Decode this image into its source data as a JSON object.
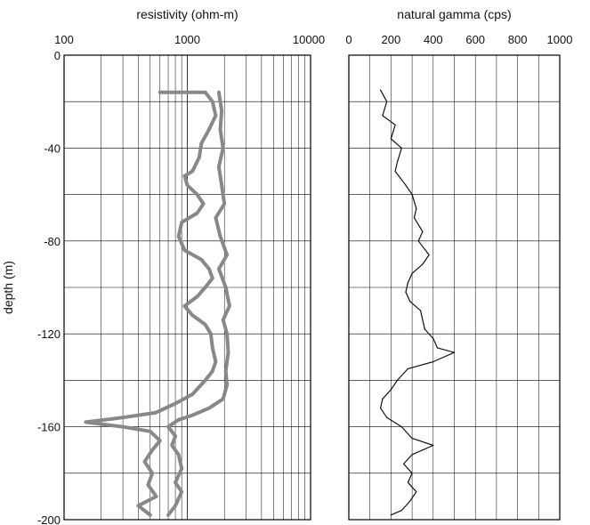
{
  "chart_data": [
    {
      "type": "line",
      "title": "resistivity (ohm-m)",
      "ylabel": "depth (m)",
      "xscale": "log",
      "xlim": [
        100,
        10000
      ],
      "ylim": [
        -200,
        0
      ],
      "x_ticks": [
        "100",
        "1000",
        "10000"
      ],
      "y_ticks": [
        "0",
        "-40",
        "-80",
        "-120",
        "-160",
        "-200"
      ],
      "grid": true,
      "series": [
        {
          "color": "#888888",
          "points": [
            [
              600,
              -16
            ],
            [
              1400,
              -16
            ],
            [
              1600,
              -20
            ],
            [
              1700,
              -26
            ],
            [
              1500,
              -32
            ],
            [
              1300,
              -38
            ],
            [
              1250,
              -44
            ],
            [
              1100,
              -50
            ],
            [
              950,
              -52
            ],
            [
              1000,
              -56
            ],
            [
              1200,
              -60
            ],
            [
              1350,
              -64
            ],
            [
              1200,
              -68
            ],
            [
              900,
              -72
            ],
            [
              850,
              -78
            ],
            [
              950,
              -84
            ],
            [
              1300,
              -88
            ],
            [
              1500,
              -92
            ],
            [
              1600,
              -96
            ],
            [
              1400,
              -100
            ],
            [
              1200,
              -104
            ],
            [
              950,
              -108
            ],
            [
              1100,
              -112
            ],
            [
              1400,
              -116
            ],
            [
              1550,
              -120
            ],
            [
              1600,
              -126
            ],
            [
              1700,
              -132
            ],
            [
              1600,
              -136
            ],
            [
              1400,
              -140
            ],
            [
              1100,
              -146
            ],
            [
              800,
              -150
            ],
            [
              550,
              -154
            ],
            [
              300,
              -156
            ],
            [
              150,
              -158
            ],
            [
              300,
              -160
            ],
            [
              500,
              -162
            ],
            [
              600,
              -166
            ],
            [
              520,
              -170
            ],
            [
              450,
              -175
            ],
            [
              520,
              -180
            ],
            [
              480,
              -185
            ],
            [
              560,
              -190
            ],
            [
              400,
              -194
            ],
            [
              500,
              -198
            ]
          ]
        },
        {
          "color": "#888888",
          "points": [
            [
              1800,
              -16
            ],
            [
              1900,
              -24
            ],
            [
              1850,
              -32
            ],
            [
              1950,
              -40
            ],
            [
              1800,
              -48
            ],
            [
              1900,
              -56
            ],
            [
              2000,
              -64
            ],
            [
              1700,
              -70
            ],
            [
              1850,
              -78
            ],
            [
              2100,
              -86
            ],
            [
              1800,
              -92
            ],
            [
              2050,
              -100
            ],
            [
              2200,
              -108
            ],
            [
              1950,
              -114
            ],
            [
              2100,
              -120
            ],
            [
              2150,
              -128
            ],
            [
              2050,
              -136
            ],
            [
              2100,
              -142
            ],
            [
              1950,
              -148
            ],
            [
              1500,
              -152
            ],
            [
              1100,
              -155
            ],
            [
              850,
              -157
            ],
            [
              700,
              -160
            ],
            [
              800,
              -164
            ],
            [
              750,
              -168
            ],
            [
              850,
              -172
            ],
            [
              900,
              -178
            ],
            [
              800,
              -184
            ],
            [
              900,
              -188
            ],
            [
              800,
              -194
            ],
            [
              700,
              -198
            ]
          ]
        }
      ]
    },
    {
      "type": "line",
      "title": "natural gamma (cps)",
      "xlim": [
        0,
        1000
      ],
      "ylim": [
        -200,
        0
      ],
      "x_ticks": [
        "0",
        "200",
        "400",
        "600",
        "800",
        "1000"
      ],
      "grid": true,
      "series": [
        {
          "color": "#111111",
          "points": [
            [
              150,
              -15
            ],
            [
              180,
              -20
            ],
            [
              160,
              -26
            ],
            [
              220,
              -30
            ],
            [
              200,
              -36
            ],
            [
              250,
              -40
            ],
            [
              230,
              -46
            ],
            [
              220,
              -50
            ],
            [
              270,
              -56
            ],
            [
              300,
              -60
            ],
            [
              320,
              -66
            ],
            [
              310,
              -70
            ],
            [
              350,
              -76
            ],
            [
              330,
              -80
            ],
            [
              380,
              -86
            ],
            [
              350,
              -90
            ],
            [
              300,
              -94
            ],
            [
              280,
              -98
            ],
            [
              270,
              -102
            ],
            [
              290,
              -106
            ],
            [
              340,
              -110
            ],
            [
              350,
              -114
            ],
            [
              360,
              -118
            ],
            [
              400,
              -122
            ],
            [
              420,
              -126
            ],
            [
              500,
              -128
            ],
            [
              400,
              -132
            ],
            [
              280,
              -135
            ],
            [
              230,
              -140
            ],
            [
              200,
              -144
            ],
            [
              160,
              -148
            ],
            [
              150,
              -152
            ],
            [
              180,
              -156
            ],
            [
              250,
              -160
            ],
            [
              300,
              -165
            ],
            [
              400,
              -168
            ],
            [
              300,
              -172
            ],
            [
              260,
              -176
            ],
            [
              300,
              -180
            ],
            [
              280,
              -184
            ],
            [
              320,
              -188
            ],
            [
              290,
              -192
            ],
            [
              250,
              -196
            ],
            [
              200,
              -198
            ]
          ]
        }
      ]
    }
  ]
}
